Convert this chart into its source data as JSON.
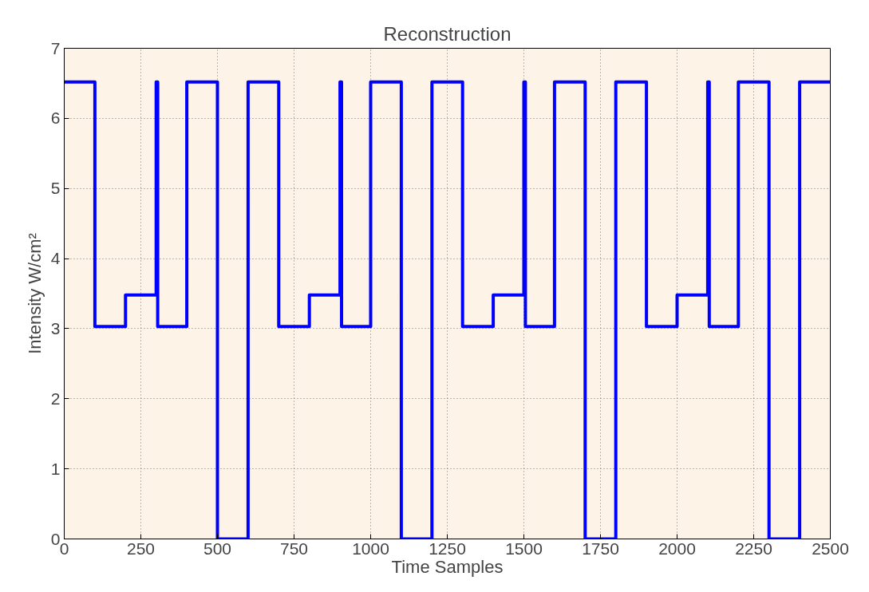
{
  "chart_data": {
    "type": "step",
    "title": "Reconstruction",
    "xlabel": "Time Samples",
    "ylabel": "Intensity W/cm²",
    "x": [
      0,
      100,
      200,
      300,
      305,
      400,
      500,
      600,
      700,
      800,
      900,
      905,
      1000,
      1100,
      1200,
      1300,
      1400,
      1500,
      1505,
      1600,
      1700,
      1800,
      1900,
      2000,
      2100,
      2105,
      2200,
      2300,
      2400,
      2500
    ],
    "series": [
      {
        "color": "#0000ff",
        "values": [
          6.52,
          3.03,
          3.48,
          6.52,
          3.03,
          6.52,
          0,
          6.52,
          3.03,
          3.48,
          6.52,
          3.03,
          6.52,
          0,
          6.52,
          3.03,
          3.48,
          6.52,
          3.03,
          6.52,
          0,
          6.52,
          3.03,
          3.48,
          6.52,
          3.03,
          6.52,
          0,
          6.52,
          6.52
        ]
      }
    ],
    "xlim": [
      0,
      2500
    ],
    "ylim": [
      0,
      7
    ],
    "xticks": [
      0,
      250,
      500,
      750,
      1000,
      1250,
      1500,
      1750,
      2000,
      2250,
      2500
    ],
    "yticks": [
      0,
      1,
      2,
      3,
      4,
      5,
      6,
      7
    ],
    "grid": true,
    "line_style": "solid",
    "marker": "none"
  }
}
